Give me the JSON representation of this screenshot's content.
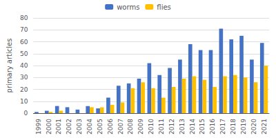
{
  "chart_data": {
    "type": "bar",
    "ylabel": "primary articles",
    "categories": [
      "1999",
      "2000",
      "2001",
      "2002",
      "2003",
      "2004",
      "2005",
      "2006",
      "2007",
      "2008",
      "2009",
      "2010",
      "2011",
      "2012",
      "2013",
      "2014",
      "2015",
      "2016",
      "2017",
      "2018",
      "2019",
      "2020",
      "2021"
    ],
    "series": [
      {
        "name": "worms",
        "color": "#4472C4",
        "values": [
          1,
          2,
          6,
          5,
          3,
          6,
          4,
          13,
          23,
          25,
          29,
          42,
          32,
          38,
          45,
          58,
          53,
          53,
          71,
          62,
          65,
          45,
          59
        ]
      },
      {
        "name": "flies",
        "color": "#FFC000",
        "values": [
          0,
          1,
          2,
          0,
          0,
          5,
          5,
          7,
          9,
          21,
          26,
          21,
          13,
          22,
          29,
          31,
          28,
          22,
          31,
          32,
          30,
          26,
          40
        ]
      }
    ],
    "ylim": [
      0,
      80
    ],
    "yticks": [
      0,
      10,
      20,
      30,
      40,
      50,
      60,
      70,
      80
    ],
    "grid": true,
    "legend": "upper center"
  }
}
